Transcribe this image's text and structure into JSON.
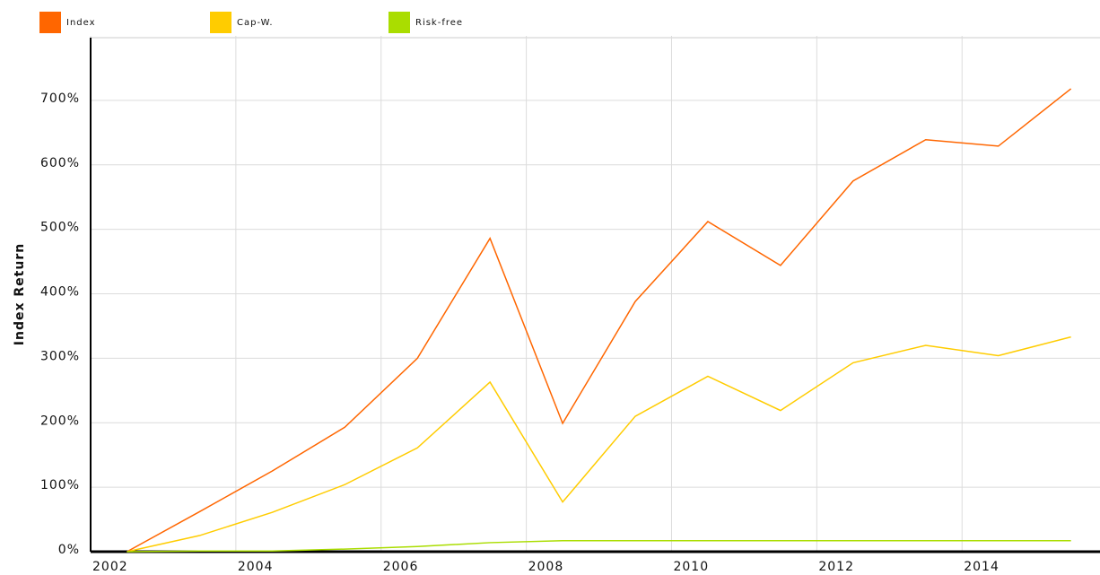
{
  "chart_data": {
    "type": "line",
    "y_label": "Index Return",
    "x": [
      2002.5,
      2003.5,
      2004.5,
      2005.5,
      2006.5,
      2007.5,
      2008.5,
      2009.5,
      2010.5,
      2011.5,
      2012.5,
      2013.5,
      2014.5,
      2015.5
    ],
    "series": [
      {
        "name": "Index",
        "color": "#ff6600",
        "values": [
          0,
          62,
          125,
          193,
          300,
          486,
          199,
          388,
          512,
          444,
          575,
          639,
          629,
          718
        ]
      },
      {
        "name": "Cap-W.",
        "color": "#ffcc00",
        "values": [
          0,
          25,
          61,
          104,
          161,
          263,
          77,
          210,
          272,
          219,
          293,
          320,
          304,
          333
        ]
      },
      {
        "name": "Risk-free",
        "color": "#aadd00",
        "values": [
          0,
          1,
          1,
          4,
          8,
          14,
          17,
          17,
          17,
          17,
          17,
          17,
          17,
          17
        ]
      }
    ],
    "xlim": [
      2002,
      2015.9
    ],
    "xticks": [
      2002,
      2004,
      2006,
      2008,
      2010,
      2012,
      2014
    ],
    "ylim": [
      0,
      800
    ],
    "yticks": [
      {
        "value": 0,
        "label": "0%"
      },
      {
        "value": 100,
        "label": "100%"
      },
      {
        "value": 200,
        "label": "200%"
      },
      {
        "value": 300,
        "label": "300%"
      },
      {
        "value": 400,
        "label": "400%"
      },
      {
        "value": 500,
        "label": "500%"
      },
      {
        "value": 600,
        "label": "600%"
      },
      {
        "value": 700,
        "label": "700%"
      }
    ],
    "grid": true
  }
}
